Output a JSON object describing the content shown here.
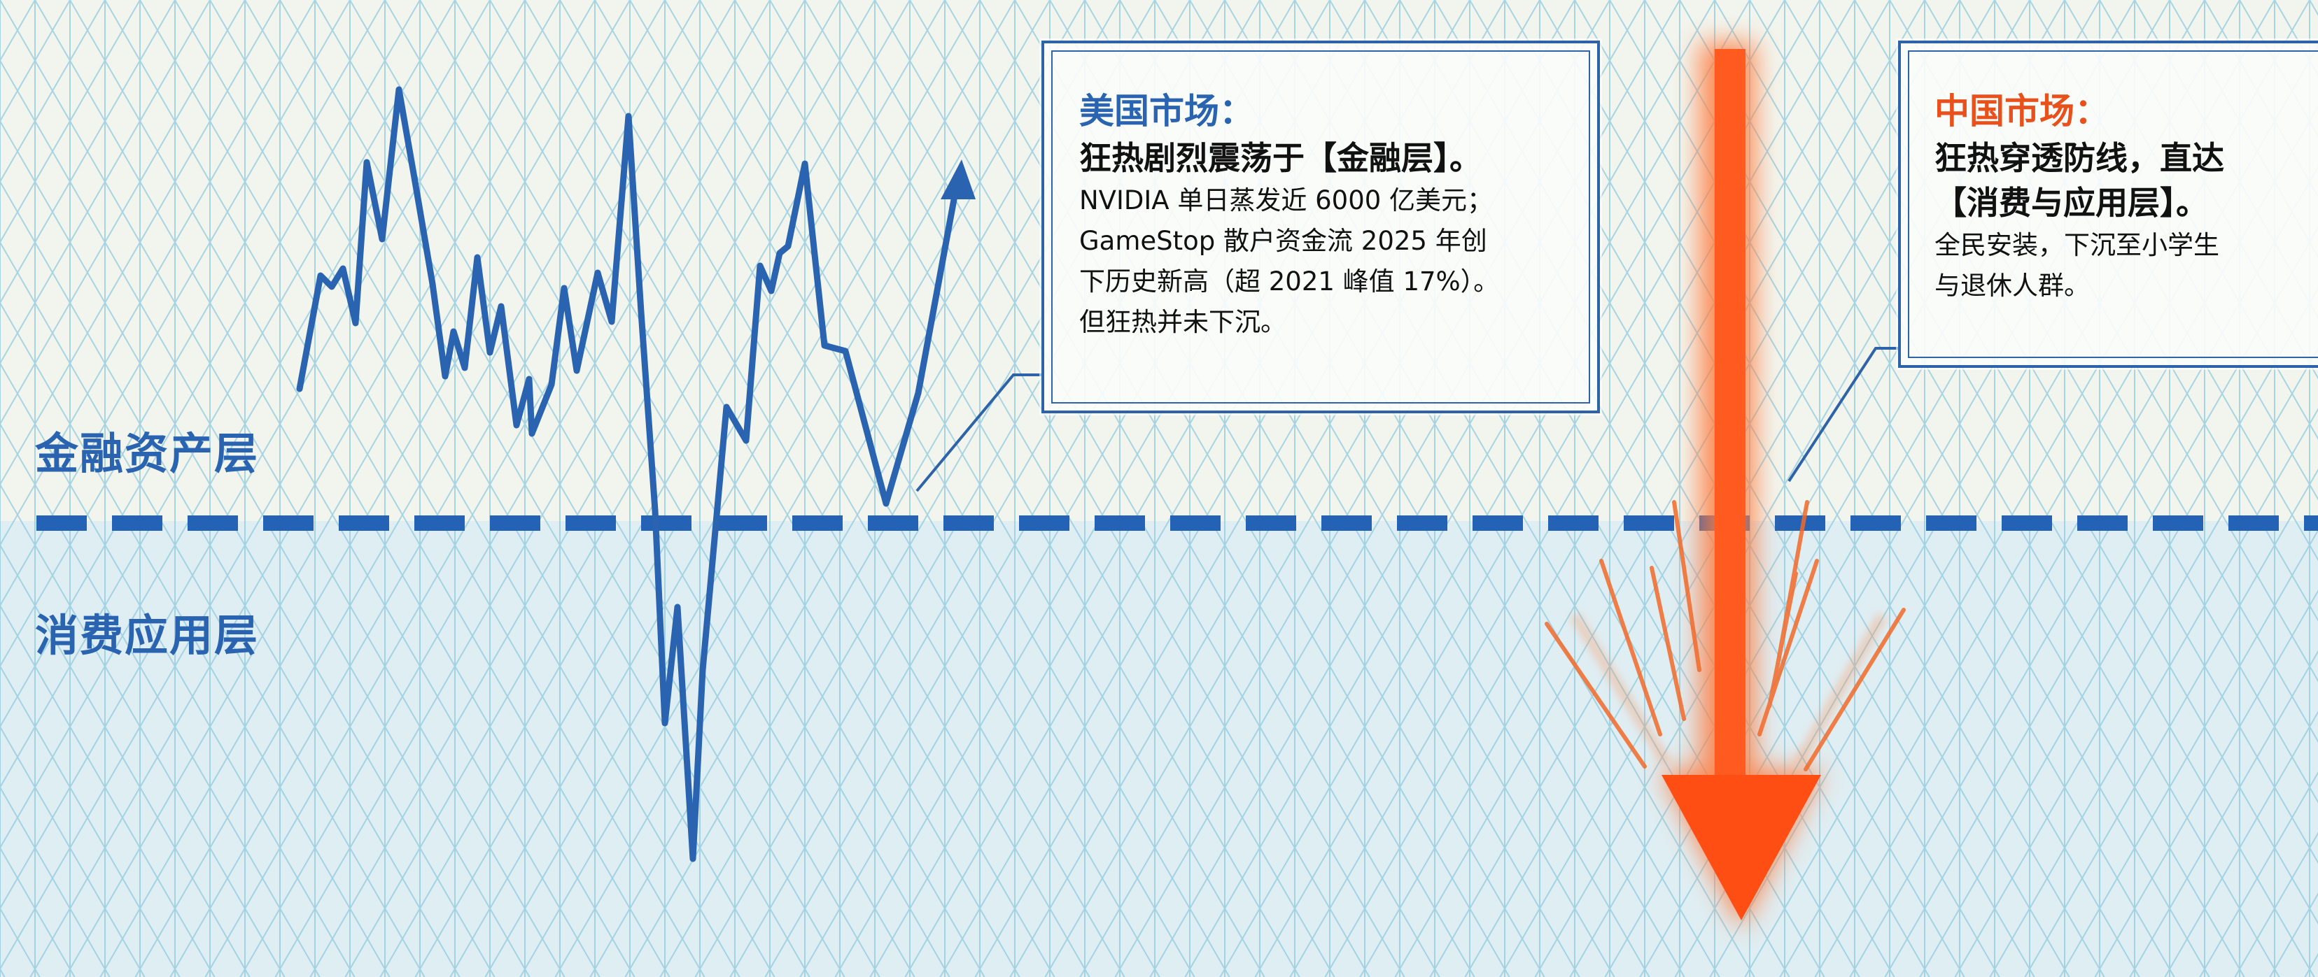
{
  "layers": {
    "finance": "金融资产层",
    "consumer": "消费应用层"
  },
  "us_box": {
    "title": "美国市场：",
    "headline": "狂热剧烈震荡于【金融层】。",
    "lines": [
      "NVIDIA 单日蒸发近 6000 亿美元；",
      "GameStop 散户资金流 2025 年创",
      "下历史新高（超 2021 峰值 17%）。",
      "但狂热并未下沉。"
    ]
  },
  "cn_box": {
    "title": "中国市场：",
    "headline_lines": [
      "狂热穿透防线，直达",
      "【消费与应用层】。"
    ],
    "lines": [
      "全民安装，下沉至小学生",
      "与退休人群。"
    ]
  },
  "colors": {
    "us_blue": "#2a63b0",
    "china_orange": "#ff5a1f",
    "divider": "#2462b5",
    "grid": "#8ec8dc"
  }
}
